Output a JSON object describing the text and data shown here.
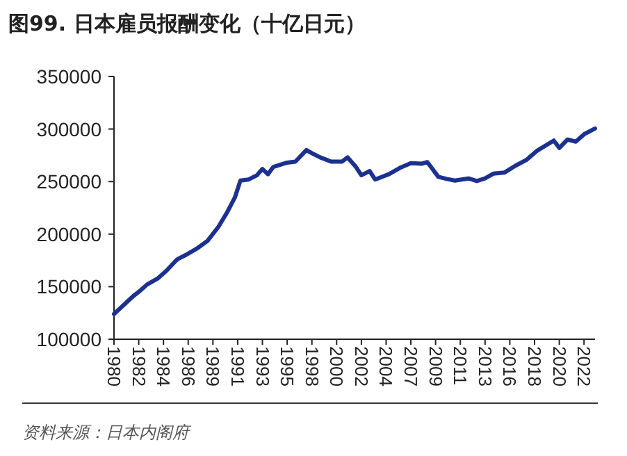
{
  "chart_data": {
    "type": "line",
    "title": "图99. 日本雇员报酬变化（十亿日元）",
    "annotations": [
      "资料来源：日本内阁府"
    ],
    "color": "#1c318f",
    "x": [
      "1980-01",
      "1981-10",
      "1982-04",
      "1983-01",
      "1984-01",
      "1984-10",
      "1985-10",
      "1986-07",
      "1987-07",
      "1988-07",
      "1989-07",
      "1990-04",
      "1991-01",
      "1991-07",
      "1992-04",
      "1993-01",
      "1993-07",
      "1994-01",
      "1994-07",
      "1995-10",
      "1996-07",
      "1997-07",
      "1998-01",
      "1998-10",
      "1999-10",
      "2000-10",
      "2001-04",
      "2002-01",
      "2002-07",
      "2003-04",
      "2003-10",
      "2005-01",
      "2006-01",
      "2007-01",
      "2008-01",
      "2008-07",
      "2009-07",
      "2010-04",
      "2011-01",
      "2012-04",
      "2013-01",
      "2013-10",
      "2014-07",
      "2015-07",
      "2016-07",
      "2017-07",
      "2018-07",
      "2020-01",
      "2020-07",
      "2021-04",
      "2022-01",
      "2022-10",
      "2023-10"
    ],
    "values": [
      124000,
      141000,
      145000,
      152000,
      158000,
      165000,
      176000,
      180000,
      186000,
      193500,
      207000,
      220000,
      235000,
      251000,
      252000,
      256000,
      262000,
      257000,
      264000,
      268000,
      269000,
      280000,
      277000,
      273000,
      269000,
      269000,
      273000,
      264000,
      256000,
      260000,
      252000,
      257000,
      263000,
      267500,
      267000,
      268500,
      254500,
      252500,
      251000,
      253000,
      250500,
      253000,
      257500,
      258500,
      265000,
      270500,
      279500,
      289000,
      282000,
      290000,
      288000,
      295000,
      300500
    ],
    "xlim": [
      "1980-01",
      "2023-10"
    ],
    "xticks": [
      {
        "value": "1980-01",
        "label": "1980"
      },
      {
        "value": "1982-04",
        "label": "1982"
      },
      {
        "value": "1984-07",
        "label": "1984"
      },
      {
        "value": "1986-10",
        "label": "1986"
      },
      {
        "value": "1989-01",
        "label": "1989"
      },
      {
        "value": "1991-04",
        "label": "1991"
      },
      {
        "value": "1993-07",
        "label": "1993"
      },
      {
        "value": "1995-10",
        "label": "1995"
      },
      {
        "value": "1998-01",
        "label": "1998"
      },
      {
        "value": "2000-04",
        "label": "2000"
      },
      {
        "value": "2002-07",
        "label": "2002"
      },
      {
        "value": "2004-10",
        "label": "2004"
      },
      {
        "value": "2007-01",
        "label": "2007"
      },
      {
        "value": "2009-04",
        "label": "2009"
      },
      {
        "value": "2011-07",
        "label": "2011"
      },
      {
        "value": "2013-10",
        "label": "2013"
      },
      {
        "value": "2016-01",
        "label": "2016"
      },
      {
        "value": "2018-04",
        "label": "2018"
      },
      {
        "value": "2020-07",
        "label": "2020"
      },
      {
        "value": "2022-10",
        "label": "2022"
      }
    ],
    "ylim": [
      100000,
      350000
    ],
    "yticks": [
      100000,
      150000,
      200000,
      250000,
      300000,
      350000
    ]
  }
}
